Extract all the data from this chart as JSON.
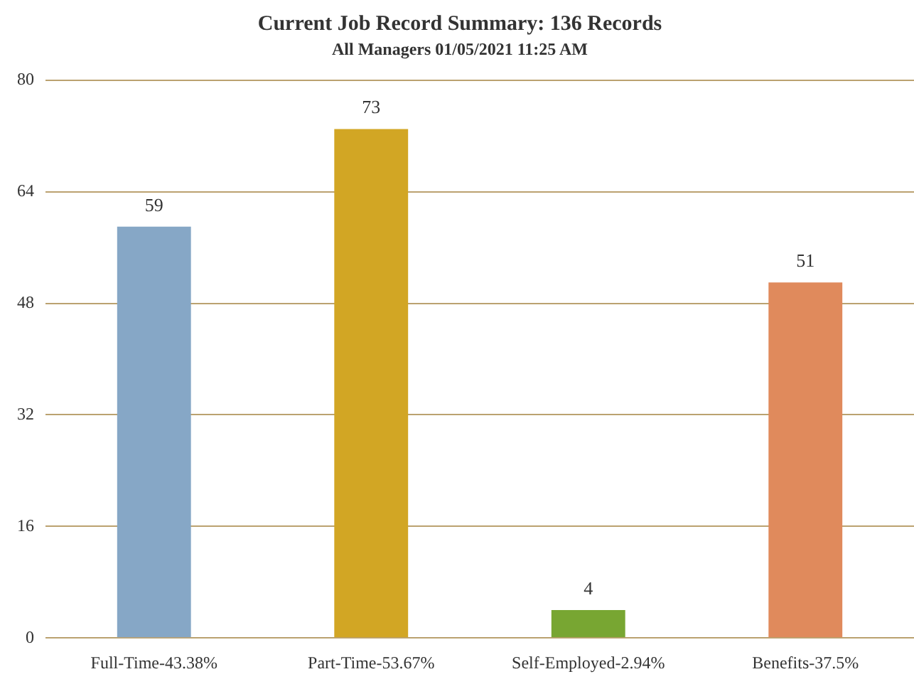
{
  "chart_data": {
    "type": "bar",
    "title": "Current Job Record Summary: 136 Records",
    "subtitle": "All Managers 01/05/2021 11:25 AM",
    "categories": [
      "Full-Time-43.38%",
      "Part-Time-53.67%",
      "Self-Employed-2.94%",
      "Benefits-37.5%"
    ],
    "values": [
      59,
      73,
      4,
      51
    ],
    "colors": [
      "#86a7c6",
      "#d2a624",
      "#78a632",
      "#e08a5c"
    ],
    "ylim": [
      0,
      80
    ],
    "yticks": [
      0,
      16,
      32,
      48,
      64,
      80
    ],
    "grid": "y",
    "data_labels": true
  }
}
